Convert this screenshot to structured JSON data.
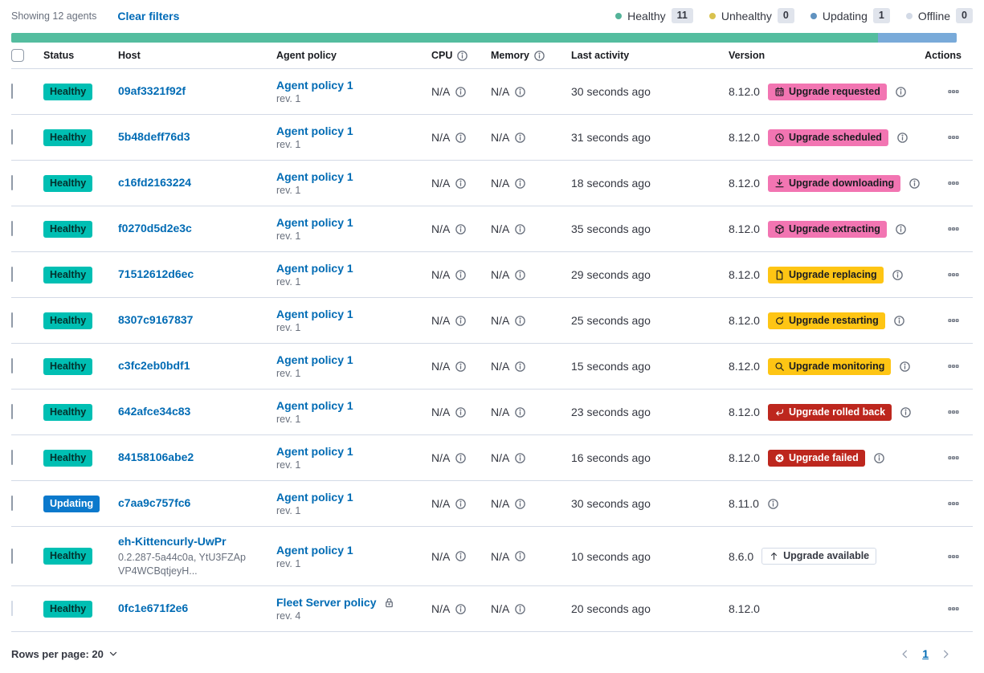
{
  "header": {
    "showing_text": "Showing 12 agents",
    "clear_filters_label": "Clear filters",
    "legend": [
      {
        "label": "Healthy",
        "count": "11",
        "color": "#54B399"
      },
      {
        "label": "Unhealthy",
        "count": "0",
        "color": "#D9C24E"
      },
      {
        "label": "Updating",
        "count": "1",
        "color": "#6092C0"
      },
      {
        "label": "Offline",
        "count": "0",
        "color": "#D3DAE6"
      }
    ]
  },
  "health_bar": {
    "segments": [
      {
        "status": "healthy",
        "color": "#54BD9F",
        "percent": 91.7
      },
      {
        "status": "updating",
        "color": "#79AAD9",
        "percent": 8.3
      }
    ]
  },
  "badge_styles": {
    "healthy": {
      "bg": "#00BFB3",
      "fg": "#03302C"
    },
    "updating": {
      "bg": "#0B79CC",
      "fg": "#FFFFFF"
    },
    "pink": {
      "bg": "#F275B2",
      "fg": "#1a1c21"
    },
    "warning": {
      "bg": "#FEC514",
      "fg": "#1a1c21"
    },
    "danger": {
      "bg": "#BD271E",
      "fg": "#FFFFFF"
    },
    "hollow": {
      "bg": "#FFFFFF",
      "fg": "#343741",
      "border": "#D3DAE6"
    }
  },
  "table": {
    "columns": [
      {
        "label": "Status"
      },
      {
        "label": "Host"
      },
      {
        "label": "Agent policy"
      },
      {
        "label": "CPU",
        "info": true
      },
      {
        "label": "Memory",
        "info": true
      },
      {
        "label": "Last activity"
      },
      {
        "label": "Version"
      },
      {
        "label": "Actions"
      }
    ],
    "rows": [
      {
        "checkbox_disabled": false,
        "status": {
          "label": "Healthy",
          "style": "healthy"
        },
        "host": {
          "name": "09af3321f92f",
          "sub": null
        },
        "policy": {
          "name": "Agent policy 1",
          "rev": "rev. 1",
          "locked": false
        },
        "cpu": "N/A",
        "memory": "N/A",
        "last_activity": "30 seconds ago",
        "version": "8.12.0",
        "upgrade_badge": {
          "label": "Upgrade requested",
          "icon": "calendar-icon",
          "style": "pink"
        },
        "version_info": true
      },
      {
        "checkbox_disabled": false,
        "status": {
          "label": "Healthy",
          "style": "healthy"
        },
        "host": {
          "name": "5b48deff76d3",
          "sub": null
        },
        "policy": {
          "name": "Agent policy 1",
          "rev": "rev. 1",
          "locked": false
        },
        "cpu": "N/A",
        "memory": "N/A",
        "last_activity": "31 seconds ago",
        "version": "8.12.0",
        "upgrade_badge": {
          "label": "Upgrade scheduled",
          "icon": "clock-icon",
          "style": "pink"
        },
        "version_info": true
      },
      {
        "checkbox_disabled": false,
        "status": {
          "label": "Healthy",
          "style": "healthy"
        },
        "host": {
          "name": "c16fd2163224",
          "sub": null
        },
        "policy": {
          "name": "Agent policy 1",
          "rev": "rev. 1",
          "locked": false
        },
        "cpu": "N/A",
        "memory": "N/A",
        "last_activity": "18 seconds ago",
        "version": "8.12.0",
        "upgrade_badge": {
          "label": "Upgrade downloading",
          "icon": "download-icon",
          "style": "pink"
        },
        "version_info": true
      },
      {
        "checkbox_disabled": false,
        "status": {
          "label": "Healthy",
          "style": "healthy"
        },
        "host": {
          "name": "f0270d5d2e3c",
          "sub": null
        },
        "policy": {
          "name": "Agent policy 1",
          "rev": "rev. 1",
          "locked": false
        },
        "cpu": "N/A",
        "memory": "N/A",
        "last_activity": "35 seconds ago",
        "version": "8.12.0",
        "upgrade_badge": {
          "label": "Upgrade extracting",
          "icon": "package-icon",
          "style": "pink"
        },
        "version_info": true
      },
      {
        "checkbox_disabled": false,
        "status": {
          "label": "Healthy",
          "style": "healthy"
        },
        "host": {
          "name": "71512612d6ec",
          "sub": null
        },
        "policy": {
          "name": "Agent policy 1",
          "rev": "rev. 1",
          "locked": false
        },
        "cpu": "N/A",
        "memory": "N/A",
        "last_activity": "29 seconds ago",
        "version": "8.12.0",
        "upgrade_badge": {
          "label": "Upgrade replacing",
          "icon": "document-icon",
          "style": "warning"
        },
        "version_info": true
      },
      {
        "checkbox_disabled": false,
        "status": {
          "label": "Healthy",
          "style": "healthy"
        },
        "host": {
          "name": "8307c9167837",
          "sub": null
        },
        "policy": {
          "name": "Agent policy 1",
          "rev": "rev. 1",
          "locked": false
        },
        "cpu": "N/A",
        "memory": "N/A",
        "last_activity": "25 seconds ago",
        "version": "8.12.0",
        "upgrade_badge": {
          "label": "Upgrade restarting",
          "icon": "refresh-icon",
          "style": "warning"
        },
        "version_info": true
      },
      {
        "checkbox_disabled": false,
        "status": {
          "label": "Healthy",
          "style": "healthy"
        },
        "host": {
          "name": "c3fc2eb0bdf1",
          "sub": null
        },
        "policy": {
          "name": "Agent policy 1",
          "rev": "rev. 1",
          "locked": false
        },
        "cpu": "N/A",
        "memory": "N/A",
        "last_activity": "15 seconds ago",
        "version": "8.12.0",
        "upgrade_badge": {
          "label": "Upgrade monitoring",
          "icon": "inspect-icon",
          "style": "warning"
        },
        "version_info": true
      },
      {
        "checkbox_disabled": false,
        "status": {
          "label": "Healthy",
          "style": "healthy"
        },
        "host": {
          "name": "642afce34c83",
          "sub": null
        },
        "policy": {
          "name": "Agent policy 1",
          "rev": "rev. 1",
          "locked": false
        },
        "cpu": "N/A",
        "memory": "N/A",
        "last_activity": "23 seconds ago",
        "version": "8.12.0",
        "upgrade_badge": {
          "label": "Upgrade rolled back",
          "icon": "return-arrow-icon",
          "style": "danger"
        },
        "version_info": true
      },
      {
        "checkbox_disabled": false,
        "status": {
          "label": "Healthy",
          "style": "healthy"
        },
        "host": {
          "name": "84158106abe2",
          "sub": null
        },
        "policy": {
          "name": "Agent policy 1",
          "rev": "rev. 1",
          "locked": false
        },
        "cpu": "N/A",
        "memory": "N/A",
        "last_activity": "16 seconds ago",
        "version": "8.12.0",
        "upgrade_badge": {
          "label": "Upgrade failed",
          "icon": "error-cross-icon",
          "style": "danger"
        },
        "version_info": true
      },
      {
        "checkbox_disabled": false,
        "status": {
          "label": "Updating",
          "style": "updating"
        },
        "host": {
          "name": "c7aa9c757fc6",
          "sub": null
        },
        "policy": {
          "name": "Agent policy 1",
          "rev": "rev. 1",
          "locked": false
        },
        "cpu": "N/A",
        "memory": "N/A",
        "last_activity": "30 seconds ago",
        "version": "8.11.0",
        "upgrade_badge": null,
        "version_info": true
      },
      {
        "checkbox_disabled": false,
        "status": {
          "label": "Healthy",
          "style": "healthy"
        },
        "host": {
          "name": "eh-Kittencurly-UwPr",
          "sub": "0.2.287-5a44c0a, YtU3FZApVP4WCBqtjeyH..."
        },
        "policy": {
          "name": "Agent policy 1",
          "rev": "rev. 1",
          "locked": false
        },
        "cpu": "N/A",
        "memory": "N/A",
        "last_activity": "10 seconds ago",
        "version": "8.6.0",
        "upgrade_badge": {
          "label": "Upgrade available",
          "icon": "up-arrow-icon",
          "style": "hollow"
        },
        "version_info": false
      },
      {
        "checkbox_disabled": true,
        "status": {
          "label": "Healthy",
          "style": "healthy"
        },
        "host": {
          "name": "0fc1e671f2e6",
          "sub": null
        },
        "policy": {
          "name": "Fleet Server policy",
          "rev": "rev. 4",
          "locked": true
        },
        "cpu": "N/A",
        "memory": "N/A",
        "last_activity": "20 seconds ago",
        "version": "8.12.0",
        "upgrade_badge": null,
        "version_info": false
      }
    ]
  },
  "footer": {
    "rows_per_page_label": "Rows per page: 20",
    "page_number": "1"
  }
}
